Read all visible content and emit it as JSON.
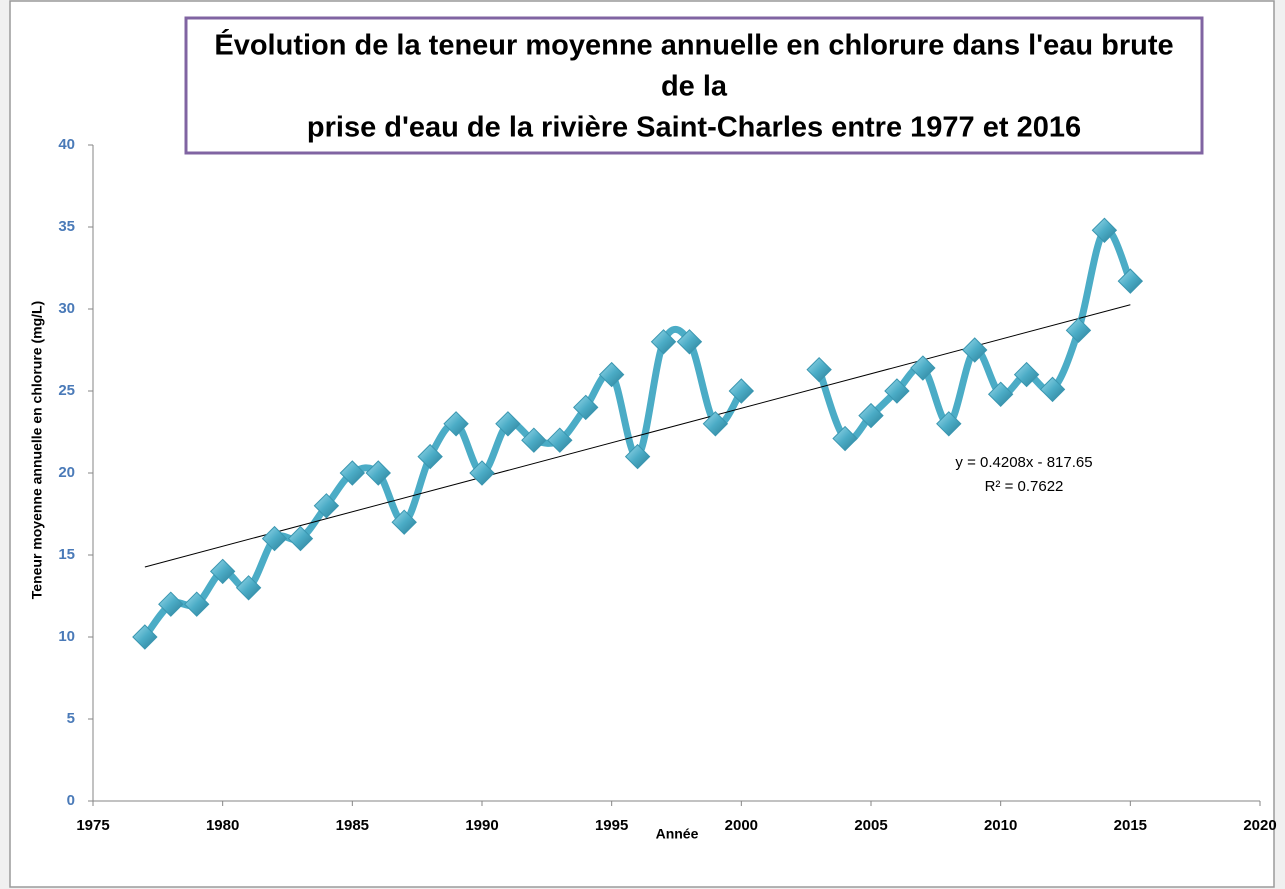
{
  "chart_data": {
    "type": "line",
    "title": [
      "Évolution de la teneur moyenne annuelle en chlorure dans l'eau brute",
      "de la",
      "prise d'eau de la rivière Saint-Charles entre 1977 et 2016"
    ],
    "x_label": "Année",
    "y_label": "Teneur moyenne annuelle en chlorure (mg/L)",
    "x": [
      1977,
      1978,
      1979,
      1980,
      1981,
      1982,
      1983,
      1984,
      1985,
      1986,
      1987,
      1988,
      1989,
      1990,
      1991,
      1992,
      1993,
      1994,
      1995,
      1996,
      1997,
      1998,
      1999,
      2000,
      2001,
      2002,
      2003,
      2004,
      2005,
      2006,
      2007,
      2008,
      2009,
      2010,
      2011,
      2012,
      2013,
      2014,
      2015
    ],
    "series": [
      {
        "name": "Chlorure",
        "color": "#4bacc6",
        "values": [
          10,
          12,
          12,
          14,
          13,
          16,
          16,
          18,
          20,
          20,
          17,
          21,
          23,
          20,
          23,
          22,
          22,
          24,
          26,
          21,
          28,
          28,
          23,
          25,
          null,
          null,
          26.3,
          22.1,
          23.5,
          25,
          26.4,
          23,
          27.5,
          24.8,
          26,
          25.1,
          28.7,
          34.8,
          31.7
        ]
      }
    ],
    "trendline": {
      "x": [
        1977,
        2015
      ],
      "values": [
        14.27,
        30.26
      ],
      "color": "#000000",
      "label": [
        "y = 0.4208x - 817.65",
        "R² = 0.7622"
      ]
    },
    "xlim": [
      1975,
      2020
    ],
    "xticks": [
      1975,
      1980,
      1985,
      1990,
      1995,
      2000,
      2005,
      2010,
      2015,
      2020
    ],
    "ylim": [
      0,
      40
    ],
    "yticks": [
      0,
      5,
      10,
      15,
      20,
      25,
      30,
      35,
      40
    ],
    "grid": false,
    "smooth": true
  }
}
